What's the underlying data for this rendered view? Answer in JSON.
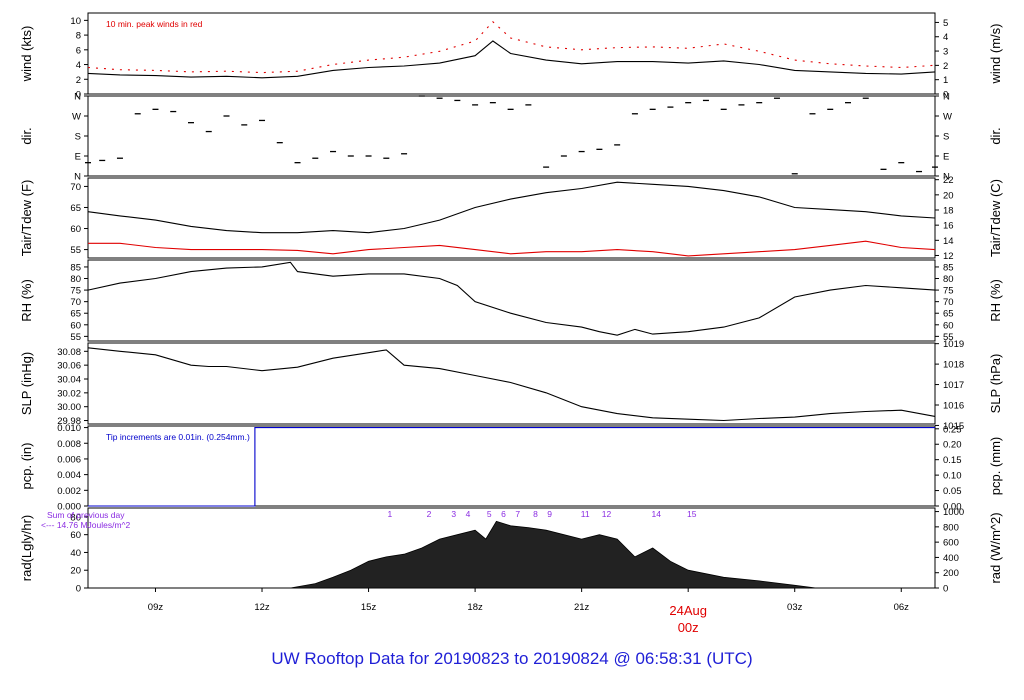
{
  "footer_title": "UW Rooftop Data for 20190823  to  20190824 @ 06:58:31  (UTC)",
  "colors": {
    "axis": "#000000",
    "primary": "#000000",
    "secondary": "#e00000",
    "precip": "#0000cc",
    "solar": "#8a2be2",
    "day_marker": "#e00000",
    "footer": "#1f1fd6"
  },
  "x_axis": {
    "ticks": [
      {
        "hour": 9,
        "label": "09z"
      },
      {
        "hour": 12,
        "label": "12z"
      },
      {
        "hour": 15,
        "label": "15z"
      },
      {
        "hour": 18,
        "label": "18z"
      },
      {
        "hour": 21,
        "label": "21z"
      },
      {
        "hour": 24,
        "label": "00z"
      },
      {
        "hour": 27,
        "label": "03z"
      },
      {
        "hour": 30,
        "label": "06z"
      }
    ],
    "day_marker": {
      "hour": 24,
      "date_label": "24Aug",
      "time_label": "00z"
    },
    "range_hours": [
      7.1,
      30.95
    ]
  },
  "chart_data": [
    {
      "type": "line",
      "ylabel_left": "wind (kts)",
      "ylabel_right": "wind (m/s)",
      "annotation": "10 min. peak winds in red",
      "ylim": [
        0,
        11
      ],
      "yticks_left": [
        0,
        2,
        4,
        6,
        8,
        10
      ],
      "yticks_right": [
        0,
        1,
        2,
        3,
        4,
        5
      ],
      "right_scale": 1.9438,
      "series": [
        {
          "color": "primary",
          "x": [
            7.1,
            8,
            9,
            10,
            11,
            12,
            13,
            14,
            15,
            16,
            17,
            18,
            18.5,
            19,
            20,
            21,
            22,
            23,
            24,
            25,
            26,
            27,
            28,
            29,
            30,
            30.95
          ],
          "y": [
            2.8,
            2.6,
            2.5,
            2.3,
            2.4,
            2.2,
            2.4,
            3.2,
            3.6,
            3.8,
            4.2,
            5.2,
            7.2,
            5.5,
            4.6,
            4.1,
            4.4,
            4.4,
            4.2,
            4.5,
            4.0,
            3.2,
            3.0,
            2.8,
            2.7,
            3.0
          ]
        },
        {
          "color": "secondary",
          "style": "dash",
          "x": [
            7.1,
            8,
            9,
            10,
            11,
            12,
            13,
            14,
            15,
            16,
            17,
            18,
            18.5,
            19,
            20,
            21,
            22,
            23,
            24,
            25,
            26,
            27,
            28,
            29,
            30,
            30.95
          ],
          "y": [
            3.6,
            3.3,
            3.2,
            3.0,
            3.1,
            2.9,
            3.1,
            4.0,
            4.6,
            5.0,
            5.8,
            7.2,
            9.8,
            7.6,
            6.4,
            6.0,
            6.3,
            6.4,
            6.2,
            6.8,
            5.8,
            4.6,
            4.1,
            3.8,
            3.6,
            3.9
          ]
        }
      ]
    },
    {
      "type": "scatter",
      "ylabel_left": "dir.",
      "ylabel_right": "dir.",
      "ylim": [
        0,
        360
      ],
      "yticks_left": [
        {
          "value": 0,
          "label": "N"
        },
        {
          "value": 90,
          "label": "E"
        },
        {
          "value": 180,
          "label": "S"
        },
        {
          "value": 270,
          "label": "W"
        },
        {
          "value": 360,
          "label": "N"
        }
      ],
      "yticks_right": [
        {
          "value": 0,
          "label": "N"
        },
        {
          "value": 90,
          "label": "E"
        },
        {
          "value": 180,
          "label": "S"
        },
        {
          "value": 270,
          "label": "W"
        },
        {
          "value": 360,
          "label": "N"
        }
      ],
      "series": [
        {
          "color": "primary",
          "x": [
            7.1,
            7.5,
            8,
            8.5,
            9,
            9.5,
            10,
            10.5,
            11,
            11.5,
            12,
            12.5,
            13,
            13.5,
            14,
            14.5,
            15,
            15.5,
            16,
            16.5,
            17,
            17.5,
            18,
            18.5,
            19,
            19.5,
            20,
            20.5,
            21,
            21.5,
            22,
            22.5,
            23,
            23.5,
            24,
            24.5,
            25,
            25.5,
            26,
            26.5,
            27,
            27.5,
            28,
            28.5,
            29,
            29.5,
            30,
            30.5,
            30.95
          ],
          "y": [
            60,
            70,
            80,
            280,
            300,
            290,
            240,
            200,
            270,
            230,
            250,
            150,
            60,
            80,
            110,
            90,
            90,
            80,
            100,
            360,
            350,
            340,
            320,
            330,
            300,
            320,
            40,
            90,
            110,
            120,
            140,
            280,
            300,
            310,
            330,
            340,
            300,
            320,
            330,
            350,
            10,
            280,
            300,
            330,
            350,
            30,
            60,
            20,
            40
          ]
        }
      ]
    },
    {
      "type": "line",
      "ylabel_left": "Tair/Tdew (F)",
      "ylabel_right": "Tair/Tdew (C)",
      "ylim": [
        53,
        72
      ],
      "yticks_left": [
        55,
        60,
        65,
        70
      ],
      "yticks_right": [
        12,
        14,
        16,
        18,
        20,
        22
      ],
      "series": [
        {
          "color": "primary",
          "x": [
            7.1,
            8,
            9,
            10,
            11,
            12,
            13,
            14,
            15,
            16,
            17,
            18,
            19,
            20,
            21,
            22,
            23,
            24,
            25,
            26,
            27,
            28,
            29,
            30,
            30.95
          ],
          "y": [
            64,
            63,
            62,
            60.5,
            59.5,
            59,
            59,
            59.5,
            59,
            60,
            62,
            65,
            67,
            68.5,
            69.5,
            71,
            70.5,
            70,
            69,
            67.5,
            65,
            64.5,
            64,
            63,
            62.5
          ]
        },
        {
          "color": "secondary",
          "x": [
            7.1,
            8,
            9,
            10,
            11,
            12,
            13,
            14,
            15,
            16,
            17,
            18,
            19,
            20,
            21,
            22,
            23,
            24,
            25,
            26,
            27,
            28,
            29,
            30,
            30.95
          ],
          "y": [
            56.5,
            56.5,
            55.5,
            55,
            55,
            55,
            54.8,
            54,
            55,
            55.5,
            56,
            55,
            54,
            54.5,
            54.5,
            55,
            54.5,
            53.5,
            54,
            54.5,
            55,
            56,
            57,
            55.5,
            55
          ]
        }
      ]
    },
    {
      "type": "line",
      "ylabel_left": "RH (%)",
      "ylabel_right": "RH (%)",
      "ylim": [
        53,
        88
      ],
      "yticks_left": [
        55,
        60,
        65,
        70,
        75,
        80,
        85
      ],
      "yticks_right": [
        55,
        60,
        65,
        70,
        75,
        80,
        85
      ],
      "series": [
        {
          "color": "primary",
          "x": [
            7.1,
            8,
            9,
            10,
            11,
            12,
            12.8,
            13,
            14,
            15,
            16,
            17,
            17.5,
            18,
            19,
            20,
            21,
            21.5,
            22,
            22.5,
            23,
            24,
            25,
            26,
            27,
            28,
            29,
            30,
            30.95
          ],
          "y": [
            75,
            78,
            80,
            83,
            84.5,
            85,
            87,
            83,
            81,
            82,
            82,
            80,
            77,
            70,
            65,
            61,
            59,
            57,
            55.5,
            58,
            56,
            57,
            59,
            63,
            72,
            75,
            77,
            76,
            75
          ]
        }
      ]
    },
    {
      "type": "line",
      "ylabel_left": "SLP (inHg)",
      "ylabel_right": "SLP (hPa)",
      "ylim": [
        29.975,
        30.092
      ],
      "yticks_left": [
        29.98,
        30,
        30.02,
        30.04,
        30.06,
        30.08
      ],
      "yticks_right": [
        1015,
        1016,
        1017,
        1018,
        1019
      ],
      "right_scale": 33.8639,
      "series": [
        {
          "color": "primary",
          "x": [
            7.1,
            8,
            9,
            10,
            10.5,
            11,
            12,
            13,
            14,
            15,
            15.5,
            16,
            17,
            18,
            19,
            20,
            21,
            22,
            23,
            24,
            25,
            26,
            27,
            28,
            29,
            30,
            30.95
          ],
          "y": [
            30.085,
            30.08,
            30.075,
            30.06,
            30.058,
            30.058,
            30.052,
            30.057,
            30.07,
            30.078,
            30.082,
            30.06,
            30.055,
            30.045,
            30.035,
            30.02,
            30.0,
            29.99,
            29.984,
            29.982,
            29.98,
            29.983,
            29.985,
            29.99,
            29.993,
            29.995,
            29.986
          ]
        }
      ]
    },
    {
      "type": "line",
      "ylabel_left": "pcp. (in)",
      "ylabel_right": "pcp. (mm)",
      "annotation": "Tip increments are 0.01in. (0.254mm.)",
      "ylim": [
        0,
        0.0102
      ],
      "yticks_left": [
        0.0,
        0.002,
        0.004,
        0.006,
        0.008,
        0.01
      ],
      "yticks_right": [
        0,
        0.05,
        0.1,
        0.15,
        0.2,
        0.25
      ],
      "right_scale": 25.4,
      "series": [
        {
          "color": "precip",
          "x": [
            7.1,
            11.8,
            11.8,
            30.95
          ],
          "y": [
            0,
            0,
            0.01,
            0.01
          ]
        }
      ]
    },
    {
      "type": "area",
      "ylabel_left": "rad(Lgly/hr)",
      "ylabel_right": "rad (W/m^2)",
      "annotation": "Sum of previous day\n<--- 14.76 MJoules/m^2",
      "ylim": [
        0,
        90
      ],
      "yticks_left": [
        0,
        20,
        40,
        60,
        80
      ],
      "yticks_right": [
        0,
        200,
        400,
        600,
        800,
        1000
      ],
      "right_scale": 11.63,
      "uv_labels": [
        {
          "hour": 15.6,
          "label": "1"
        },
        {
          "hour": 16.7,
          "label": "2"
        },
        {
          "hour": 17.4,
          "label": "3"
        },
        {
          "hour": 17.8,
          "label": "4"
        },
        {
          "hour": 18.4,
          "label": "5"
        },
        {
          "hour": 18.8,
          "label": "6"
        },
        {
          "hour": 19.2,
          "label": "7"
        },
        {
          "hour": 19.7,
          "label": "8"
        },
        {
          "hour": 20.1,
          "label": "9"
        },
        {
          "hour": 21.1,
          "label": "11"
        },
        {
          "hour": 21.7,
          "label": "12"
        },
        {
          "hour": 23.1,
          "label": "14"
        },
        {
          "hour": 24.1,
          "label": "15"
        }
      ],
      "series": [
        {
          "color": "primary",
          "x": [
            7.1,
            12.8,
            13.5,
            14,
            14.5,
            15,
            15.5,
            16,
            16.5,
            17,
            17.5,
            18,
            18.3,
            18.6,
            19,
            19.5,
            20,
            20.5,
            21,
            21.5,
            22,
            22.5,
            23,
            23.5,
            24,
            25,
            26,
            27,
            27.6,
            30.95
          ],
          "y": [
            0,
            0,
            5,
            12,
            20,
            30,
            35,
            38,
            45,
            55,
            60,
            65,
            55,
            75,
            70,
            68,
            65,
            60,
            55,
            60,
            55,
            35,
            45,
            30,
            20,
            12,
            8,
            3,
            0,
            0
          ]
        }
      ]
    }
  ]
}
